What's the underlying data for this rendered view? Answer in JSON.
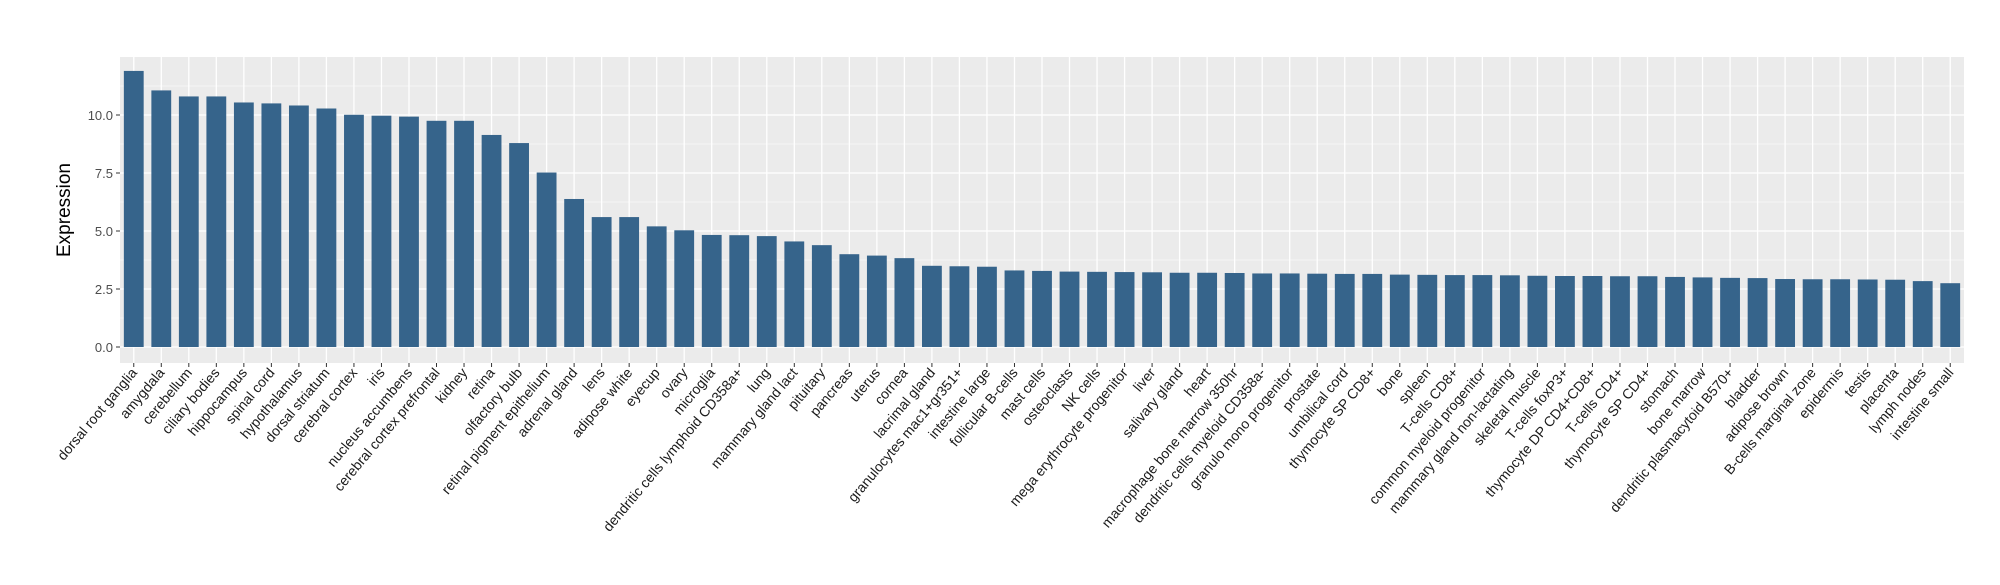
{
  "chart_data": {
    "type": "bar",
    "title": "",
    "xlabel": "",
    "ylabel": "Expression",
    "ylim": [
      0,
      12.5
    ],
    "yticks": [
      "0.0",
      "2.5",
      "5.0",
      "7.5",
      "10.0"
    ],
    "ytick_values": [
      0,
      2.5,
      5,
      7.5,
      10
    ],
    "grid": true,
    "bar_color": "#36648B",
    "panel_color": "#EBEBEB",
    "categories": [
      "dorsal root ganglia",
      "amygdala",
      "cerebellum",
      "ciliary bodies",
      "hippocampus",
      "spinal cord",
      "hypothalamus",
      "dorsal striatum",
      "cerebral cortex",
      "iris",
      "nucleus accumbens",
      "cerebral cortex prefrontal",
      "kidney",
      "retina",
      "olfactory bulb",
      "retinal pigment epithelium",
      "adrenal gland",
      "lens",
      "adipose white",
      "eyecup",
      "ovary",
      "microglia",
      "dendritic cells lymphoid CD358a+",
      "lung",
      "mammary gland  lact",
      "pituitary",
      "pancreas",
      "uterus",
      "cornea",
      "lacrimal gland",
      "granulocytes mac1+gr351+",
      "intestine large",
      "follicular B-cells",
      "mast cells",
      "osteoclasts",
      "NK cells",
      "mega erythrocyte progenitor",
      "liver",
      "salivary gland",
      "heart",
      "macrophage bone marrow 350hr",
      "dendritic cells myeloid CD358a-",
      "granulo mono progenitor",
      "prostate",
      "umbilical cord",
      "thymocyte SP CD8+",
      "bone",
      "spleen",
      "T-cells CD8+",
      "common myeloid progenitor",
      "mammary gland non-lactating",
      "skeletal muscle",
      "T-cells foxP3+",
      "thymocyte DP CD4+CD8+",
      "T-cells CD4+",
      "thymocyte SP CD4+",
      "stomach",
      "bone marrow",
      "dendritic plasmacytoid B570+",
      "bladder",
      "adipose brown",
      "B-cells marginal zone",
      "epidermis",
      "testis",
      "placenta",
      "lymph nodes",
      "intestine small"
    ],
    "values": [
      11.9,
      11.06,
      10.8,
      10.8,
      10.54,
      10.5,
      10.41,
      10.28,
      10.01,
      9.97,
      9.93,
      9.75,
      9.75,
      9.14,
      8.79,
      7.52,
      6.38,
      5.6,
      5.6,
      5.2,
      5.03,
      4.83,
      4.82,
      4.78,
      4.55,
      4.39,
      4.0,
      3.94,
      3.83,
      3.5,
      3.48,
      3.46,
      3.3,
      3.28,
      3.25,
      3.24,
      3.23,
      3.22,
      3.2,
      3.2,
      3.19,
      3.17,
      3.17,
      3.16,
      3.15,
      3.15,
      3.12,
      3.11,
      3.1,
      3.1,
      3.09,
      3.07,
      3.06,
      3.06,
      3.05,
      3.05,
      3.02,
      3.0,
      2.98,
      2.97,
      2.93,
      2.92,
      2.92,
      2.91,
      2.9,
      2.84,
      2.75
    ]
  }
}
